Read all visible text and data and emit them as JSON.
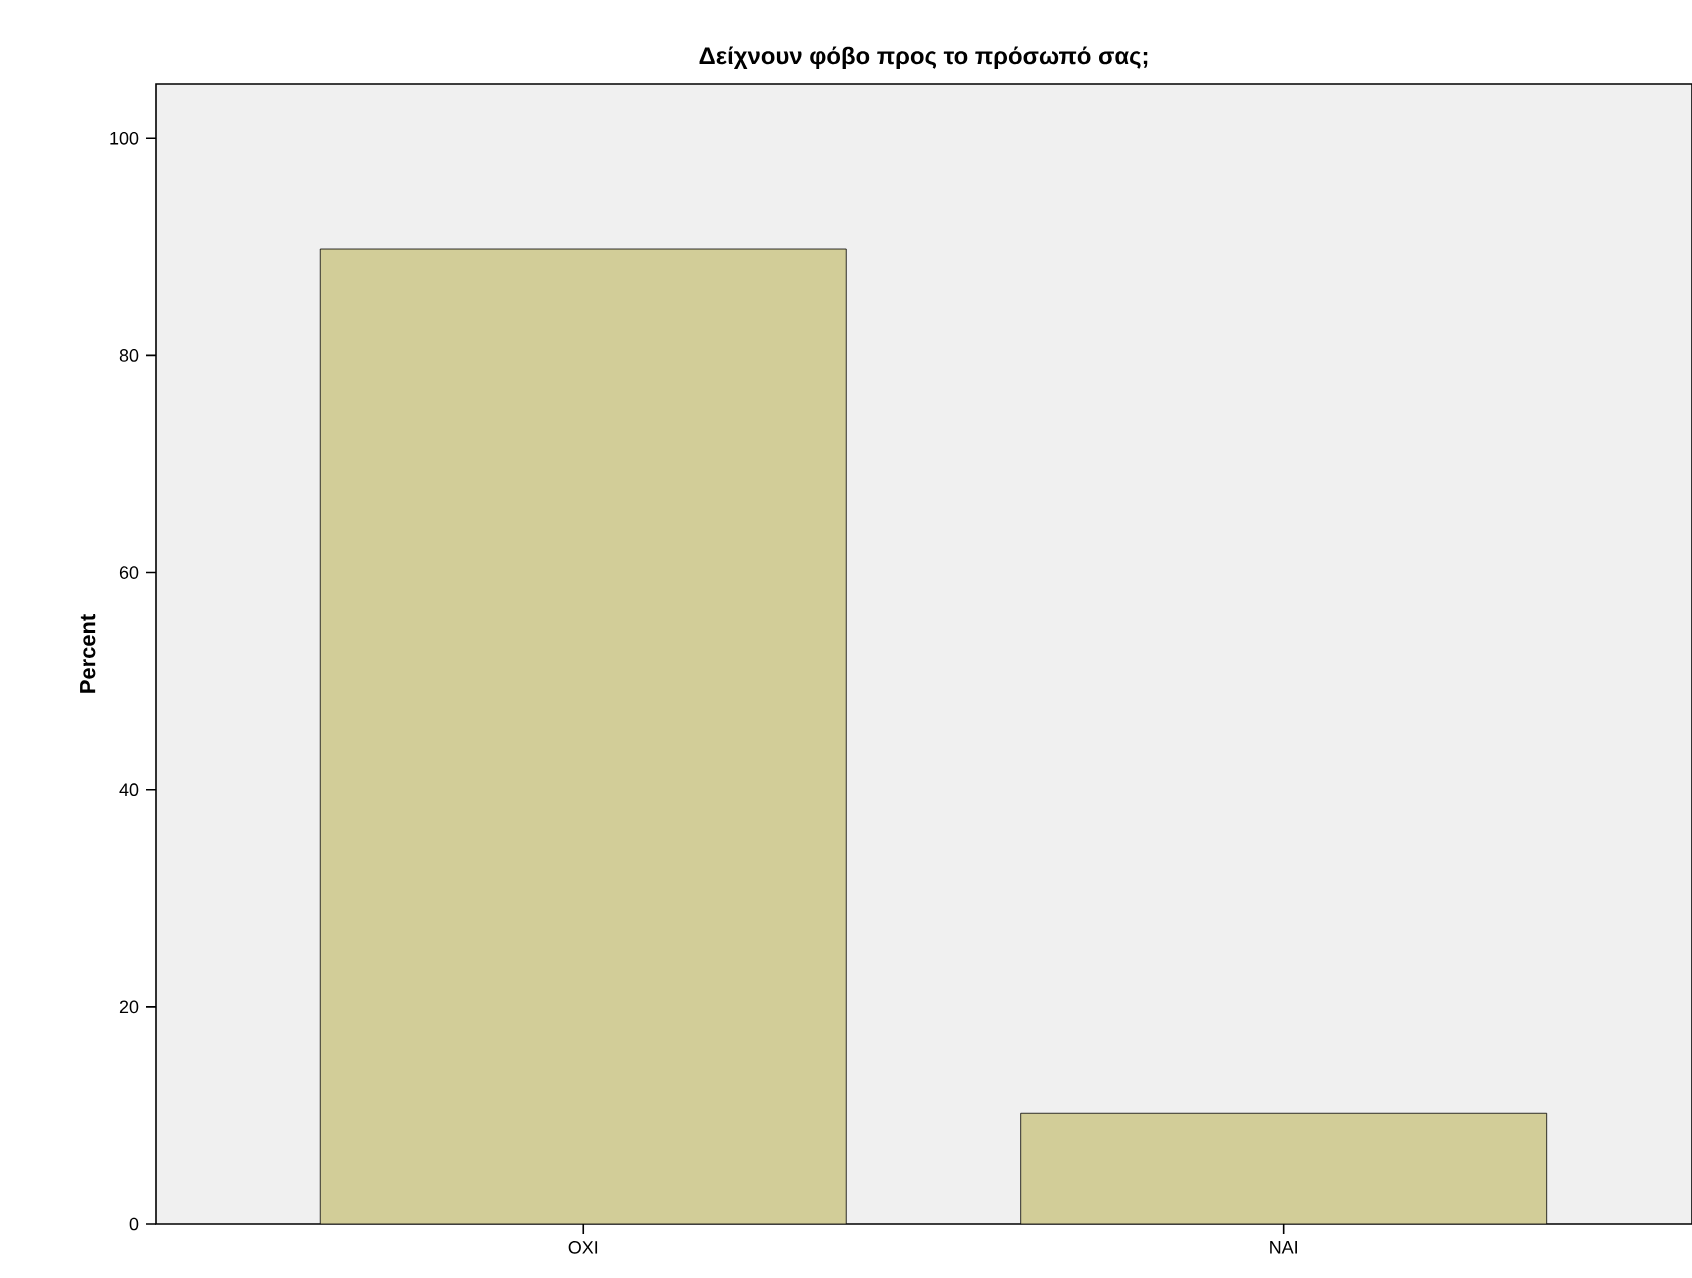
{
  "chart_data": {
    "type": "bar",
    "title": "Δείχνουν φόβο προς το πρόσωπό σας;",
    "ylabel": "Percent",
    "categories": [
      "OXI",
      "NAI"
    ],
    "values": [
      89.8,
      10.2
    ],
    "color": "#d2cd98",
    "ylim": [
      0,
      105
    ],
    "yticks": [
      0,
      20,
      40,
      60,
      80,
      100
    ],
    "grid": false
  }
}
